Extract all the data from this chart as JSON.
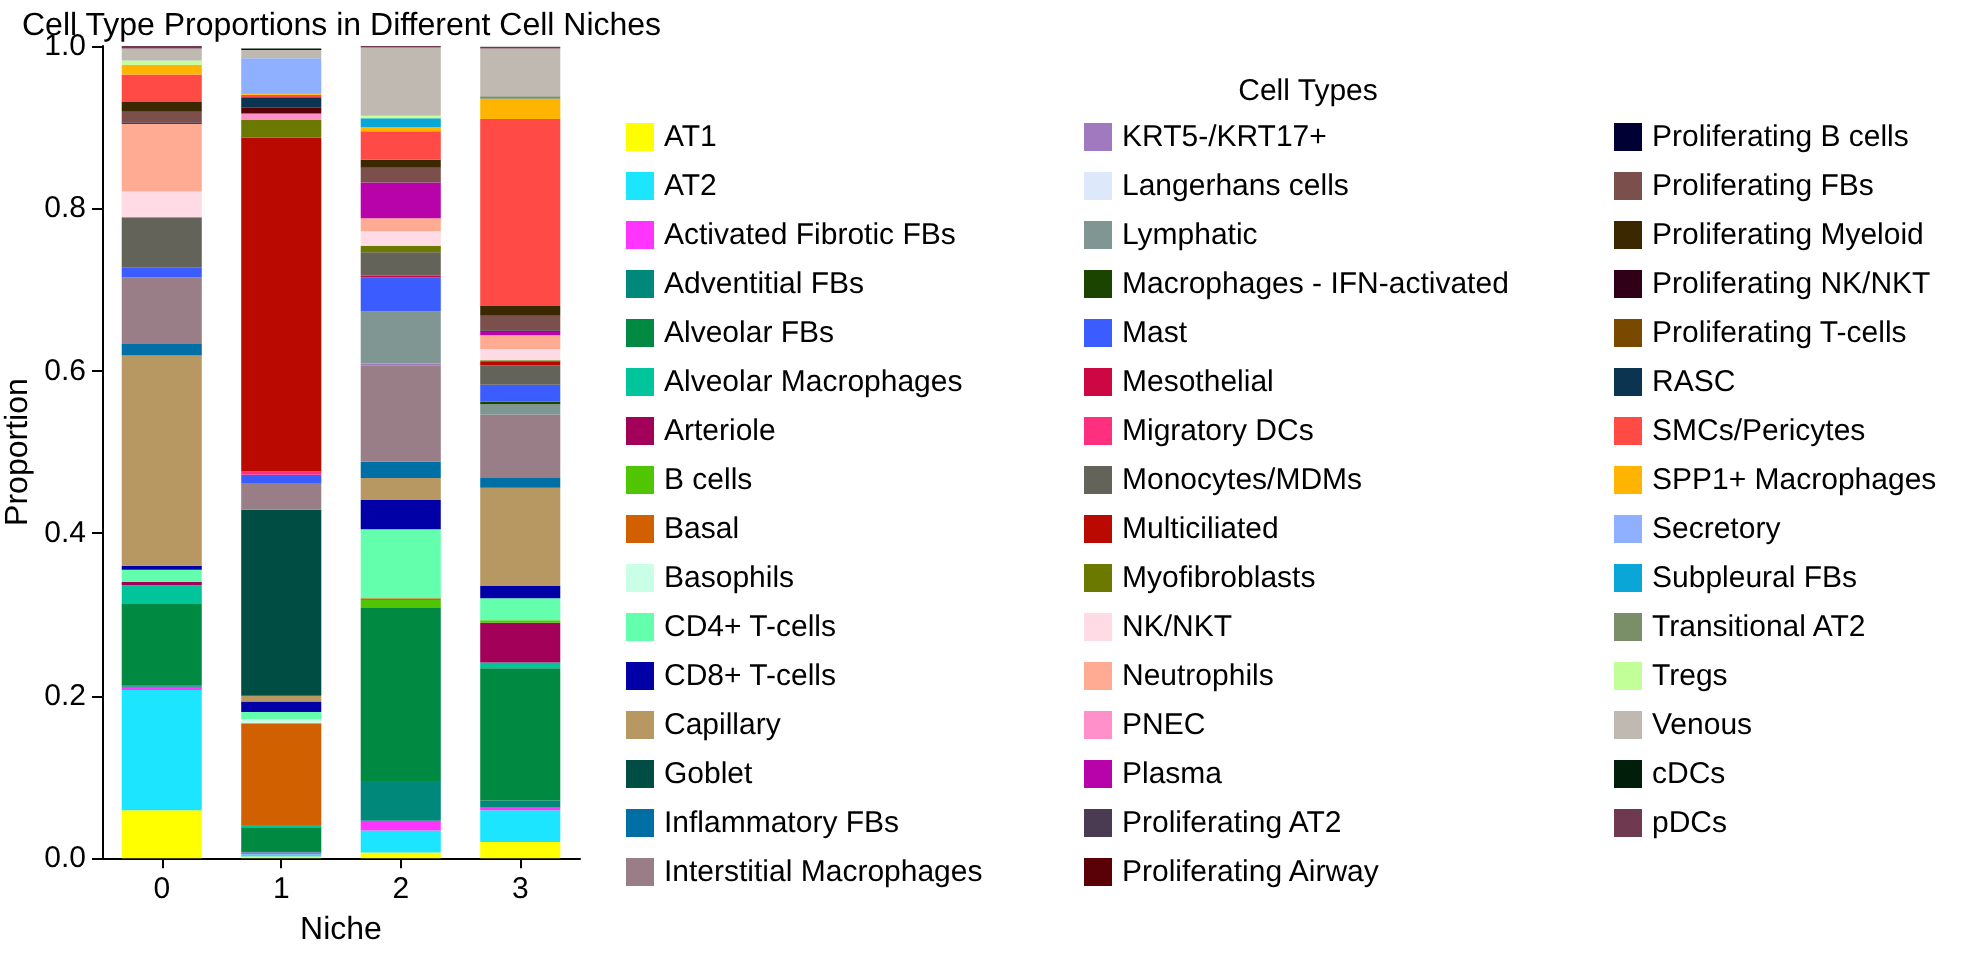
{
  "chart_data": {
    "type": "bar",
    "stacked": true,
    "title": "Cell Type Proportions in Different Cell Niches",
    "xlabel": "Niche",
    "ylabel": "Proportion",
    "legend_title": "Cell Types",
    "legend": "right",
    "grid": false,
    "categories": [
      "0",
      "1",
      "2",
      "3"
    ],
    "ylim": [
      0,
      1
    ],
    "yticks": [
      {
        "value": 0,
        "label": "0.0"
      },
      {
        "value": 0.2,
        "label": "0.2"
      },
      {
        "value": 0.4,
        "label": "0.4"
      },
      {
        "value": 0.6,
        "label": "0.6"
      },
      {
        "value": 0.8,
        "label": "0.8"
      },
      {
        "value": 1,
        "label": "1.0"
      }
    ],
    "series": [
      {
        "name": "AT1",
        "color": "#ffff00",
        "values": [
          0.059,
          0.002,
          0.007,
          0.02
        ]
      },
      {
        "name": "AT2",
        "color": "#1ce6ff",
        "values": [
          0.148,
          0.003,
          0.027,
          0.039
        ]
      },
      {
        "name": "Activated Fibrotic FBs",
        "color": "#ff34ff",
        "values": [
          0.004,
          0.002,
          0.012,
          0.004
        ]
      },
      {
        "name": "Adventitial FBs",
        "color": "#00897b",
        "values": [
          0.002,
          0.002,
          0.049,
          0.008
        ]
      },
      {
        "name": "Alveolar FBs",
        "color": "#008941",
        "values": [
          0.1,
          0.029,
          0.213,
          0.163
        ]
      },
      {
        "name": "Alveolar Macrophages",
        "color": "#00c49a",
        "values": [
          0.023,
          0.003,
          0,
          0.007
        ]
      },
      {
        "name": "Arteriole",
        "color": "#a30059",
        "values": [
          0.004,
          0,
          0,
          0.049
        ]
      },
      {
        "name": "B cells",
        "color": "#4fc601",
        "values": [
          0,
          0,
          0.01,
          0.003
        ]
      },
      {
        "name": "Basal",
        "color": "#d16100",
        "values": [
          0,
          0.125,
          0.002,
          0
        ]
      },
      {
        "name": "Basophils",
        "color": "#c8ffe6",
        "values": [
          0,
          0.005,
          0,
          0
        ]
      },
      {
        "name": "CD4+ T-cells",
        "color": "#63ffac",
        "values": [
          0.015,
          0.009,
          0.085,
          0.027
        ]
      },
      {
        "name": "CD8+ T-cells",
        "color": "#0000a6",
        "values": [
          0.005,
          0.013,
          0.036,
          0.015
        ]
      },
      {
        "name": "Capillary",
        "color": "#b79762",
        "values": [
          0.259,
          0.007,
          0.027,
          0.121
        ]
      },
      {
        "name": "Goblet",
        "color": "#004d43",
        "values": [
          0,
          0.229,
          0,
          0
        ]
      },
      {
        "name": "Inflammatory FBs",
        "color": "#006fa6",
        "values": [
          0.014,
          0,
          0.02,
          0.012
        ]
      },
      {
        "name": "Interstitial Macrophages",
        "color": "#997d87",
        "values": [
          0.082,
          0.032,
          0.119,
          0.078
        ]
      },
      {
        "name": "KRT5-/KRT17+",
        "color": "#a079bf",
        "values": [
          0,
          0,
          0.002,
          0
        ]
      },
      {
        "name": "Langerhans cells",
        "color": "#dde9fa",
        "values": [
          0,
          0,
          0,
          0
        ]
      },
      {
        "name": "Lymphatic",
        "color": "#809693",
        "values": [
          0,
          0,
          0.064,
          0.013
        ]
      },
      {
        "name": "Macrophages - IFN-activated",
        "color": "#1b4400",
        "values": [
          0,
          0,
          0,
          0.003
        ]
      },
      {
        "name": "Mast",
        "color": "#3b5dff",
        "values": [
          0.012,
          0.011,
          0.042,
          0.021
        ]
      },
      {
        "name": "Mesothelial",
        "color": "#cc0744",
        "values": [
          0,
          0,
          0.002,
          0
        ]
      },
      {
        "name": "Migratory DCs",
        "color": "#ff2f80",
        "values": [
          0,
          0.004,
          0,
          0
        ]
      },
      {
        "name": "Monocytes/MDMs",
        "color": "#636359",
        "values": [
          0.062,
          0,
          0.029,
          0.024
        ]
      },
      {
        "name": "Multiciliated",
        "color": "#ba0900",
        "values": [
          0,
          0.411,
          0,
          0.004
        ]
      },
      {
        "name": "Myofibroblasts",
        "color": "#6b7900",
        "values": [
          0,
          0.022,
          0.008,
          0.002
        ]
      },
      {
        "name": "NK/NKT",
        "color": "#ffdbe5",
        "values": [
          0.032,
          0,
          0.018,
          0.014
        ]
      },
      {
        "name": "Neutrophils",
        "color": "#ffaa92",
        "values": [
          0.083,
          0,
          0.016,
          0.017
        ]
      },
      {
        "name": "PNEC",
        "color": "#ff90c9",
        "values": [
          0,
          0.008,
          0,
          0
        ]
      },
      {
        "name": "Plasma",
        "color": "#b903aa",
        "values": [
          0,
          0,
          0.044,
          0.004
        ]
      },
      {
        "name": "Proliferating AT2",
        "color": "#4a3b53",
        "values": [
          0.002,
          0,
          0,
          0.002
        ]
      },
      {
        "name": "Proliferating Airway",
        "color": "#5a0007",
        "values": [
          0,
          0.007,
          0,
          0
        ]
      },
      {
        "name": "Proliferating B cells",
        "color": "#000035",
        "values": [
          0,
          0,
          0,
          0
        ]
      },
      {
        "name": "Proliferating FBs",
        "color": "#7b4f4b",
        "values": [
          0.013,
          0,
          0.018,
          0.018
        ]
      },
      {
        "name": "Proliferating Myeloid",
        "color": "#3b2700",
        "values": [
          0.012,
          0,
          0.01,
          0.012
        ]
      },
      {
        "name": "Proliferating NK/NKT",
        "color": "#300018",
        "values": [
          0,
          0,
          0,
          0
        ]
      },
      {
        "name": "Proliferating T-cells",
        "color": "#7a4900",
        "values": [
          0,
          0,
          0,
          0
        ]
      },
      {
        "name": "RASC",
        "color": "#0a3450",
        "values": [
          0,
          0.013,
          0,
          0
        ]
      },
      {
        "name": "SMCs/Pericytes",
        "color": "#ff4a46",
        "values": [
          0.034,
          0.003,
          0.035,
          0.23
        ]
      },
      {
        "name": "SPP1+ Macrophages",
        "color": "#ffb500",
        "values": [
          0.012,
          0.002,
          0.005,
          0.025
        ]
      },
      {
        "name": "Secretory",
        "color": "#8fb0ff",
        "values": [
          0,
          0.043,
          0,
          0
        ]
      },
      {
        "name": "Subpleural FBs",
        "color": "#0aa6d8",
        "values": [
          0,
          0,
          0.011,
          0
        ]
      },
      {
        "name": "Transitional AT2",
        "color": "#7a8f68",
        "values": [
          0,
          0,
          0,
          0.003
        ]
      },
      {
        "name": "Tregs",
        "color": "#c2ff99",
        "values": [
          0.005,
          0,
          0.003,
          0
        ]
      },
      {
        "name": "Venous",
        "color": "#c0b9b2",
        "values": [
          0.015,
          0.01,
          0.084,
          0.059
        ]
      },
      {
        "name": "cDCs",
        "color": "#001e09",
        "values": [
          0,
          0.002,
          0,
          0
        ]
      },
      {
        "name": "pDCs",
        "color": "#6f3a4f",
        "values": [
          0.003,
          0,
          0.002,
          0.002
        ]
      }
    ]
  }
}
